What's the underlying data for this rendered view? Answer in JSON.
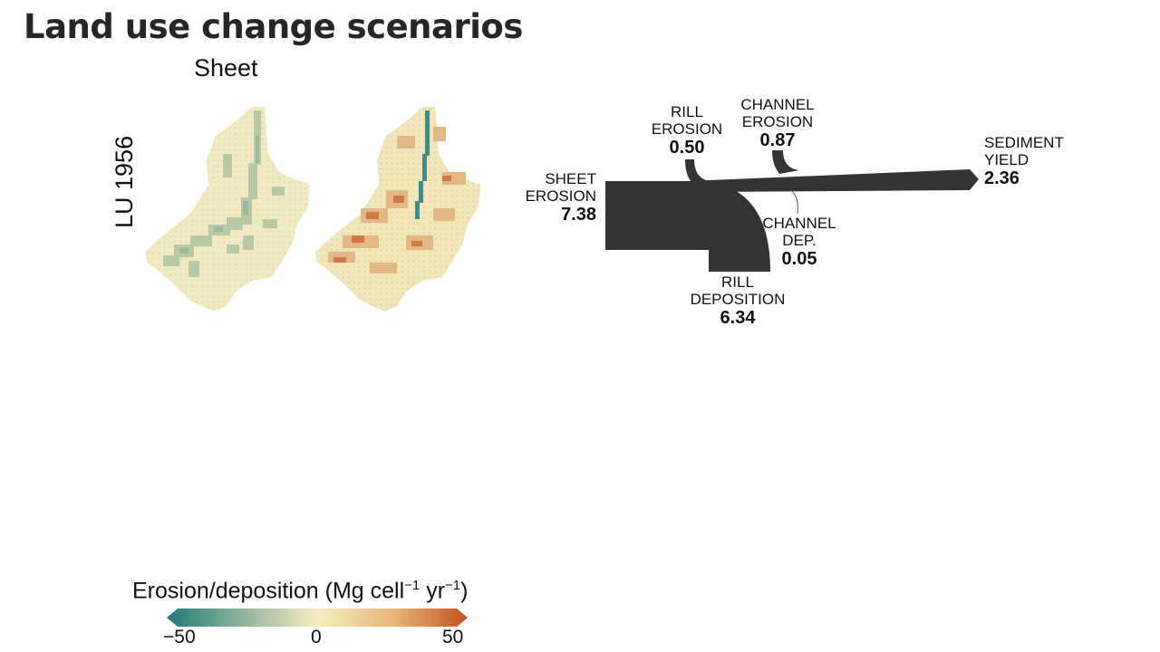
{
  "slide": {
    "title": "Land use change scenarios"
  },
  "figure": {
    "column_label": "Sheet",
    "row_label": "LU 1956",
    "legend": {
      "title_main": "Erosion/deposition (Mg cell",
      "title_sup1": "−1",
      "title_mid": " yr",
      "title_sup2": "−1",
      "title_end": ")",
      "tick_min": "−50",
      "tick_mid": "0",
      "tick_max": "50",
      "colors": [
        "#1f7a79",
        "#8fb39b",
        "#f5edc2",
        "#e8b778",
        "#c4501e"
      ]
    },
    "sankey": {
      "sheet_erosion": {
        "label1": "SHEET",
        "label2": "EROSION",
        "value": "7.38"
      },
      "rill_erosion": {
        "label1": "RILL",
        "label2": "EROSION",
        "value": "0.50"
      },
      "channel_erosion": {
        "label1": "CHANNEL",
        "label2": "EROSION",
        "value": "0.87"
      },
      "sediment_yield": {
        "label1": "SEDIMENT",
        "label2": "YIELD",
        "value": "2.36"
      },
      "channel_dep": {
        "label1": "CHANNEL",
        "label2": "DEP.",
        "value": "0.05"
      },
      "rill_deposition": {
        "label1": "RILL",
        "label2": "DEPOSITION",
        "value": "6.34"
      },
      "flow_color": "#333333"
    }
  }
}
